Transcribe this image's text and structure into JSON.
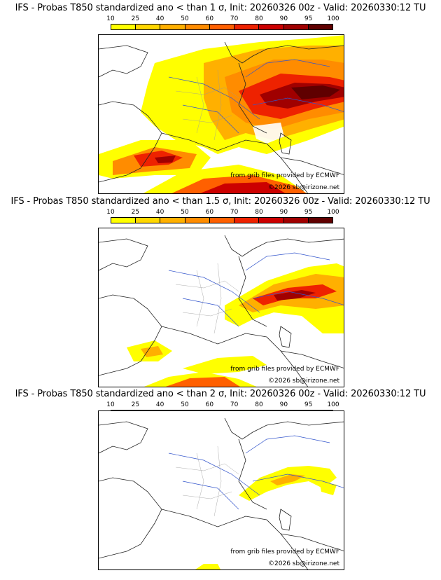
{
  "scale": {
    "labels": [
      "10",
      "25",
      "40",
      "50",
      "60",
      "70",
      "80",
      "90",
      "95",
      "100"
    ],
    "colors": [
      "#ffff00",
      "#ffd700",
      "#ffb000",
      "#ff8c00",
      "#ff6000",
      "#ee2200",
      "#cc0000",
      "#a00000",
      "#600000"
    ]
  },
  "credits": {
    "source": "from grib files provided by ECMWF",
    "copyright": "©2026 sb@irizone.net"
  },
  "panels": [
    {
      "title": "IFS - Probas T850  standardized ano < than 1 σ, Init: 20260326 00z - Valid: 20260330:12 TU",
      "threshold_sigma": 1
    },
    {
      "title": "IFS - Probas T850  standardized ano < than 1.5 σ, Init: 20260326 00z - Valid: 20260330:12 TU",
      "threshold_sigma": 1.5
    },
    {
      "title": "IFS - Probas T850  standardized ano < than 2 σ, Init: 20260326 00z - Valid: 20260330:12 TU",
      "threshold_sigma": 2
    }
  ]
}
